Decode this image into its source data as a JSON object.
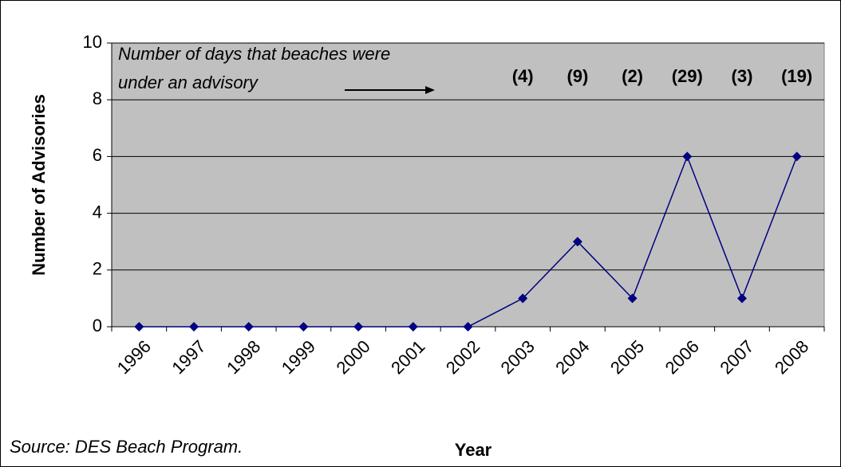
{
  "chart_data": {
    "type": "line",
    "xlabel": "Year",
    "ylabel": "Number of Advisories",
    "categories": [
      "1996",
      "1997",
      "1998",
      "1999",
      "2000",
      "2001",
      "2002",
      "2003",
      "2004",
      "2005",
      "2006",
      "2007",
      "2008"
    ],
    "series": [
      {
        "name": "Number of Advisories",
        "color": "#000080",
        "values": [
          0,
          0,
          0,
          0,
          0,
          0,
          0,
          1,
          3,
          1,
          6,
          1,
          6
        ]
      }
    ],
    "ylim": [
      0,
      10
    ],
    "yticks": [
      0,
      2,
      4,
      6,
      8,
      10
    ],
    "grid": true,
    "plot_background": "#c0c0c0",
    "annotation": [
      "Number of days that beaches were",
      "under an advisory"
    ],
    "day_labels": [
      {
        "category": "2003",
        "label": "(4)"
      },
      {
        "category": "2004",
        "label": "(9)"
      },
      {
        "category": "2005",
        "label": "(2)"
      },
      {
        "category": "2006",
        "label": "(29)"
      },
      {
        "category": "2007",
        "label": "(3)"
      },
      {
        "category": "2008",
        "label": "(19)"
      }
    ],
    "source": "Source: DES Beach Program."
  }
}
